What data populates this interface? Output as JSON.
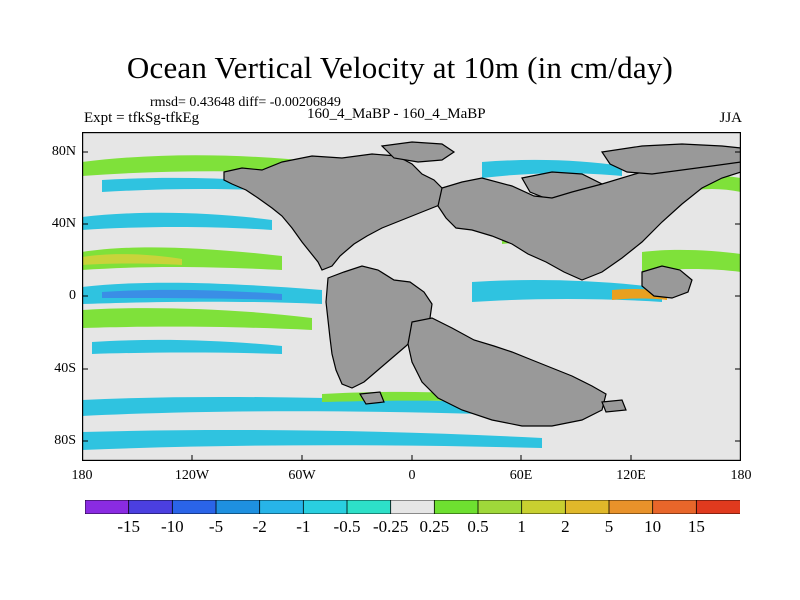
{
  "title": "Ocean Vertical Velocity at 10m (in cm/day)",
  "stats": "rmsd= 0.43648 diff= -0.00206849",
  "expt": "Expt = tfkSg-tfkEg",
  "center_label": "160_4_MaBP - 160_4_MaBP",
  "season": "JJA",
  "map": {
    "lat_ticks": [
      "80N",
      "40N",
      "0",
      "40S",
      "80S"
    ],
    "lon_ticks": [
      "180",
      "120W",
      "60W",
      "0",
      "60E",
      "120E",
      "180"
    ],
    "colors": {
      "ocean_neutral": "#e6e6e6",
      "land": "#999999",
      "cyan": "#2fc3e0",
      "blue": "#3a8ee6",
      "green": "#7fe13a",
      "yellow": "#c8d43a",
      "orange": "#e8a020"
    }
  },
  "colorbar": {
    "labels": [
      "-15",
      "-10",
      "-5",
      "-2",
      "-1",
      "-0.5",
      "-0.25",
      "0.25",
      "0.5",
      "1",
      "2",
      "5",
      "10",
      "15"
    ],
    "colors": [
      "#8a2be2",
      "#4b3fe0",
      "#2a64e8",
      "#1e90e0",
      "#27b4e8",
      "#29cfe0",
      "#2de0c8",
      "#e6e6e6",
      "#6ee030",
      "#9fd83a",
      "#c8d030",
      "#e0b82a",
      "#e8922a",
      "#e8662a",
      "#e03a1e"
    ]
  }
}
